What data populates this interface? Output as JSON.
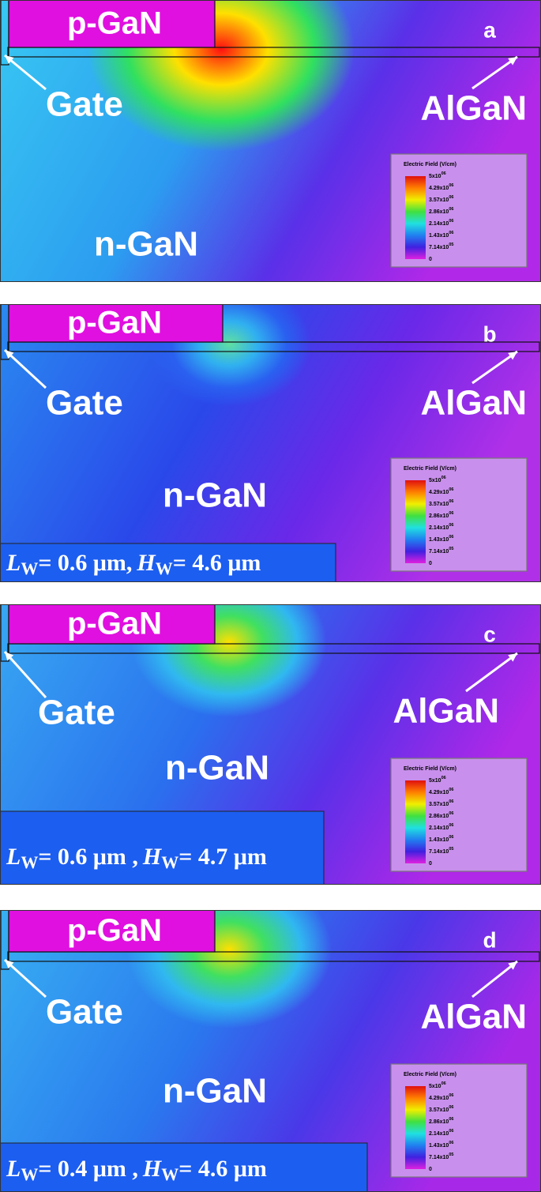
{
  "panels": [
    {
      "letter": "a",
      "p_gan": "p-GaN",
      "gate": "Gate",
      "algan": "AlGaN",
      "n_gan": "n-GaN",
      "legend": {
        "title": "Electric Field (V/cm)",
        "ticks": [
          {
            "base": "5x10",
            "exponent": "06"
          },
          {
            "base": "4.29x10",
            "exponent": "06"
          },
          {
            "base": "3.57x10",
            "exponent": "06"
          },
          {
            "base": "2.86x10",
            "exponent": "06"
          },
          {
            "base": "2.14x10",
            "exponent": "06"
          },
          {
            "base": "1.43x10",
            "exponent": "06"
          },
          {
            "base": "7.14x10",
            "exponent": "05"
          },
          "0"
        ]
      }
    },
    {
      "letter": "b",
      "p_gan": "p-GaN",
      "gate": "Gate",
      "algan": "AlGaN",
      "n_gan": "n-GaN",
      "legend": {
        "title": "Electric Field (V/cm)",
        "ticks": [
          {
            "base": "5x10",
            "exponent": "06"
          },
          {
            "base": "4.29x10",
            "exponent": "06"
          },
          {
            "base": "3.57x10",
            "exponent": "06"
          },
          {
            "base": "2.86x10",
            "exponent": "06"
          },
          {
            "base": "2.14x10",
            "exponent": "06"
          },
          {
            "base": "1.43x10",
            "exponent": "06"
          },
          {
            "base": "7.14x10",
            "exponent": "05"
          },
          "0"
        ]
      },
      "caption": {
        "l": "L",
        "l_sub": "W",
        "l_value": "= 0.6 μm,",
        "h": "H",
        "h_sub": "W",
        "h_value": "= 4.6 μm"
      }
    },
    {
      "letter": "c",
      "p_gan": "p-GaN",
      "gate": "Gate",
      "algan": "AlGaN",
      "n_gan": "n-GaN",
      "legend": {
        "title": "Electric Field (V/cm)",
        "ticks": [
          {
            "base": "5x10",
            "exponent": "06"
          },
          {
            "base": "4.29x10",
            "exponent": "06"
          },
          {
            "base": "3.57x10",
            "exponent": "06"
          },
          {
            "base": "2.86x10",
            "exponent": "06"
          },
          {
            "base": "2.14x10",
            "exponent": "06"
          },
          {
            "base": "1.43x10",
            "exponent": "06"
          },
          {
            "base": "7.14x10",
            "exponent": "05"
          },
          "0"
        ]
      },
      "caption": {
        "l": "L",
        "l_sub": "W",
        "l_value": "= 0.6 μm ,",
        "h": "H",
        "h_sub": "W",
        "h_value": "= 4.7 μm"
      }
    },
    {
      "letter": "d",
      "p_gan": "p-GaN",
      "gate": "Gate",
      "algan": "AlGaN",
      "n_gan": "n-GaN",
      "legend": {
        "title": "Electric Field (V/cm)",
        "ticks": [
          {
            "base": "5x10",
            "exponent": "06"
          },
          {
            "base": "4.29x10",
            "exponent": "06"
          },
          {
            "base": "3.57x10",
            "exponent": "06"
          },
          {
            "base": "2.86x10",
            "exponent": "06"
          },
          {
            "base": "2.14x10",
            "exponent": "06"
          },
          {
            "base": "1.43x10",
            "exponent": "06"
          },
          {
            "base": "7.14x10",
            "exponent": "05"
          },
          "0"
        ]
      },
      "caption": {
        "l": "L",
        "l_sub": "W",
        "l_value": "= 0.4 μm ,",
        "h": "H",
        "h_sub": "W",
        "h_value": "= 4.6 μm"
      }
    }
  ]
}
